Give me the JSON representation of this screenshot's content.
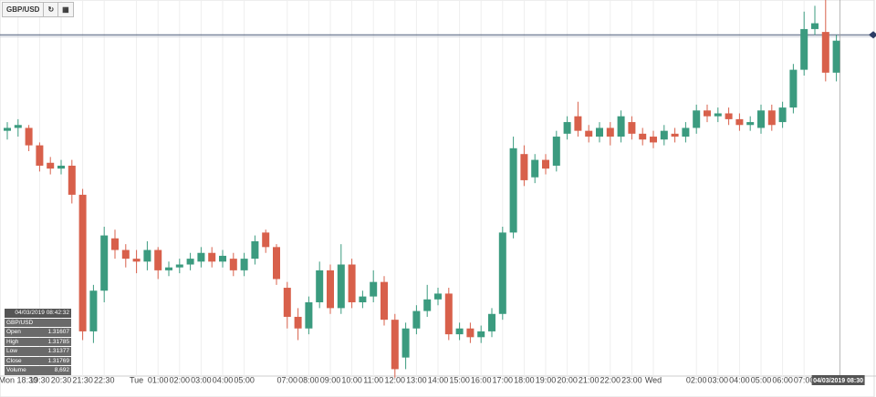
{
  "chart_data": {
    "type": "candlestick",
    "symbol": "GBP/USD",
    "categories": [
      null,
      "Mon 18:30",
      null,
      "19:30",
      null,
      "20:30",
      null,
      "21:30",
      null,
      "22:30",
      null,
      null,
      "Tue",
      null,
      "01:00",
      null,
      "02:00",
      null,
      "03:00",
      null,
      "04:00",
      null,
      "05:00",
      null,
      null,
      null,
      "07:00",
      null,
      "08:00",
      null,
      "09:00",
      null,
      "10:00",
      null,
      "11:00",
      null,
      "12:00",
      null,
      "13:00",
      null,
      "14:00",
      null,
      "15:00",
      null,
      "16:00",
      null,
      "17:00",
      null,
      "18:00",
      null,
      "19:00",
      null,
      "20:00",
      null,
      "21:00",
      null,
      "22:00",
      null,
      "23:00",
      null,
      "Wed",
      null,
      null,
      null,
      "02:00",
      null,
      "03:00",
      null,
      "04:00",
      null,
      "05:00",
      null,
      "06:00",
      null,
      "07:00",
      null,
      null,
      "04/03/2019 08:30"
    ],
    "open": [
      1.3165,
      1.3166,
      1.3166,
      1.316,
      1.3154,
      1.3152,
      1.3153,
      1.3143,
      1.3096,
      1.311,
      1.3128,
      1.3124,
      1.3121,
      1.312,
      1.3124,
      1.3117,
      1.3118,
      1.3119,
      1.312,
      1.3123,
      1.312,
      1.3121,
      1.3117,
      1.3121,
      1.313,
      1.3125,
      1.3111,
      1.3101,
      1.3097,
      1.3106,
      1.3117,
      1.3104,
      1.3119,
      1.3106,
      1.3108,
      1.3113,
      1.31,
      1.3087,
      1.3097,
      1.3103,
      1.3107,
      1.3109,
      1.3095,
      1.3097,
      1.3094,
      1.3096,
      1.3102,
      1.313,
      1.3157,
      1.3149,
      1.3155,
      1.3153,
      1.3164,
      1.317,
      1.3165,
      1.3163,
      1.3166,
      1.3163,
      1.3168,
      1.3164,
      1.3163,
      1.3162,
      1.3164,
      1.3163,
      1.3166,
      1.3172,
      1.317,
      1.3171,
      1.3169,
      1.3167,
      1.3166,
      1.3172,
      1.3168,
      1.3173,
      1.3186,
      1.32,
      1.3199,
      1.3185
    ],
    "high": [
      1.3168,
      1.3169,
      1.3167,
      1.3161,
      1.3156,
      1.3155,
      1.3155,
      1.3145,
      1.3112,
      1.3132,
      1.3131,
      1.3126,
      1.3124,
      1.3127,
      1.3125,
      1.312,
      1.3121,
      1.3123,
      1.3125,
      1.3125,
      1.3124,
      1.3123,
      1.3123,
      1.3129,
      1.3131,
      1.3126,
      1.3113,
      1.3104,
      1.3108,
      1.312,
      1.3119,
      1.3126,
      1.3121,
      1.311,
      1.3117,
      1.3115,
      1.3102,
      1.3099,
      1.3105,
      1.3112,
      1.3111,
      1.3111,
      1.3099,
      1.3099,
      1.3098,
      1.3104,
      1.3132,
      1.3163,
      1.316,
      1.3157,
      1.3157,
      1.3165,
      1.317,
      1.3175,
      1.3167,
      1.3168,
      1.3168,
      1.3172,
      1.317,
      1.3166,
      1.3165,
      1.3167,
      1.3166,
      1.3168,
      1.3174,
      1.3174,
      1.3173,
      1.3173,
      1.3171,
      1.317,
      1.3174,
      1.3174,
      1.3175,
      1.3188,
      1.3206,
      1.3208,
      1.321,
      1.3198
    ],
    "low": [
      1.3162,
      1.3163,
      1.3158,
      1.3151,
      1.315,
      1.315,
      1.314,
      1.3093,
      1.3092,
      1.3106,
      1.3121,
      1.3118,
      1.3116,
      1.3117,
      1.3114,
      1.3115,
      1.3116,
      1.3117,
      1.3118,
      1.3118,
      1.3118,
      1.3115,
      1.3115,
      1.3119,
      1.3123,
      1.3112,
      1.3097,
      1.3093,
      1.3095,
      1.3104,
      1.3102,
      1.3102,
      1.3104,
      1.3104,
      1.3106,
      1.3098,
      1.308,
      1.3083,
      1.3095,
      1.3101,
      1.3105,
      1.3093,
      1.3093,
      1.3092,
      1.3092,
      1.3094,
      1.31,
      1.3128,
      1.3146,
      1.3147,
      1.315,
      1.3151,
      1.3162,
      1.3163,
      1.3161,
      1.3161,
      1.316,
      1.3161,
      1.3162,
      1.316,
      1.3159,
      1.316,
      1.3161,
      1.3161,
      1.3164,
      1.3168,
      1.3168,
      1.3167,
      1.3165,
      1.3165,
      1.3164,
      1.3165,
      1.3166,
      1.3171,
      1.3184,
      1.3198,
      1.3182,
      1.3182
    ],
    "close": [
      1.3166,
      1.3167,
      1.316,
      1.3153,
      1.3152,
      1.3153,
      1.3143,
      1.3096,
      1.311,
      1.3129,
      1.3124,
      1.3121,
      1.312,
      1.3124,
      1.3117,
      1.3118,
      1.3119,
      1.3121,
      1.3123,
      1.312,
      1.3122,
      1.3117,
      1.3121,
      1.3127,
      1.3125,
      1.3114,
      1.3101,
      1.3097,
      1.3106,
      1.3117,
      1.3104,
      1.3119,
      1.3106,
      1.3108,
      1.3113,
      1.31,
      1.3083,
      1.3097,
      1.3103,
      1.3107,
      1.3109,
      1.3095,
      1.3097,
      1.3094,
      1.3096,
      1.3102,
      1.313,
      1.3159,
      1.3148,
      1.3155,
      1.3152,
      1.3163,
      1.3168,
      1.3165,
      1.3163,
      1.3166,
      1.3163,
      1.317,
      1.3164,
      1.3162,
      1.3161,
      1.3165,
      1.3163,
      1.3166,
      1.3172,
      1.317,
      1.3171,
      1.3169,
      1.3167,
      1.3168,
      1.3172,
      1.3167,
      1.3173,
      1.3186,
      1.32,
      1.3202,
      1.3185,
      1.3196
    ],
    "up_color": "#3b9b7f",
    "down_color": "#d8604b",
    "price_line": 1.3198,
    "ylim": [
      1.308,
      1.321
    ],
    "grid": true,
    "info_box": {
      "timestamp": "04/03/2019 08:42:32",
      "symbol": "GBP/USD",
      "rows": [
        [
          "Open",
          "1.31607"
        ],
        [
          "High",
          "1.31785"
        ],
        [
          "Low",
          "1.31377"
        ],
        [
          "Close",
          "1.31769"
        ],
        [
          "Volume",
          "8,692"
        ]
      ]
    }
  }
}
